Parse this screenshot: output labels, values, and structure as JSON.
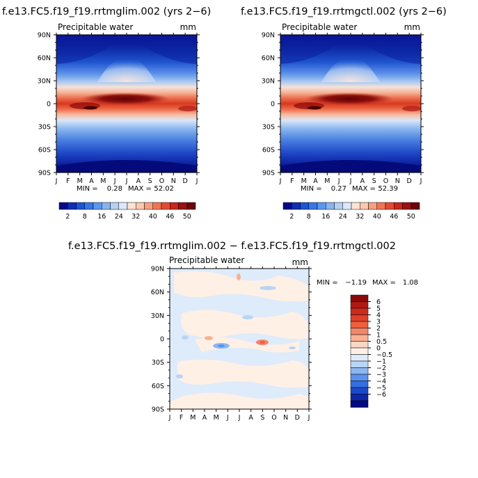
{
  "chart_data": [
    {
      "type": "heatmap",
      "title": "f.e13.FC5.f19_f19.rrtmglim.002 (yrs 2−6)",
      "subtitle": "Precipitable water",
      "units": "mm",
      "x_labels": [
        "J",
        "F",
        "M",
        "A",
        "M",
        "J",
        "J",
        "A",
        "S",
        "O",
        "N",
        "D",
        "J"
      ],
      "y_labels": [
        "90N",
        "60N",
        "30N",
        "0",
        "30S",
        "60S",
        "90S"
      ],
      "stats": {
        "min_label": "MIN =",
        "min": "0.28",
        "max_label": "MAX =",
        "max": "52.02"
      }
    },
    {
      "type": "heatmap",
      "title": "f.e13.FC5.f19_f19.rrtmgctl.002 (yrs 2−6)",
      "subtitle": "Precipitable water",
      "units": "mm",
      "x_labels": [
        "J",
        "F",
        "M",
        "A",
        "M",
        "J",
        "J",
        "A",
        "S",
        "O",
        "N",
        "D",
        "J"
      ],
      "y_labels": [
        "90N",
        "60N",
        "30N",
        "0",
        "30S",
        "60S",
        "90S"
      ],
      "stats": {
        "min_label": "MIN =",
        "min": "0.27",
        "max_label": "MAX =",
        "max": "52.39"
      }
    },
    {
      "type": "heatmap",
      "title": "f.e13.FC5.f19_f19.rrtmglim.002 − f.e13.FC5.f19_f19.rrtmgctl.002",
      "subtitle": "Precipitable water",
      "units": "mm",
      "x_labels": [
        "J",
        "F",
        "M",
        "A",
        "M",
        "J",
        "J",
        "A",
        "S",
        "O",
        "N",
        "D",
        "J"
      ],
      "y_labels": [
        "90N",
        "60N",
        "30N",
        "0",
        "30S",
        "60S",
        "90S"
      ],
      "stats": {
        "min_label": "MIN =",
        "min": "−1.19",
        "max_label": "MAX =",
        "max": "1.08"
      }
    }
  ],
  "legend_main": {
    "labels": [
      "2",
      "8",
      "16",
      "24",
      "32",
      "40",
      "46",
      "50"
    ],
    "colors": [
      "#08088c",
      "#0b2fb5",
      "#1a55d8",
      "#3577e6",
      "#5a98ee",
      "#86b5f2",
      "#b4d0f5",
      "#dde9f7",
      "#fbe3d6",
      "#fbc8ac",
      "#f7a07c",
      "#f07553",
      "#e44a32",
      "#c8261b",
      "#9e0f10",
      "#6b0505"
    ]
  },
  "legend_diff": {
    "labels": [
      "6",
      "5",
      "4",
      "3",
      "2",
      "1",
      "0.5",
      "0",
      "−0.5",
      "−1",
      "−2",
      "−3",
      "−4",
      "−5",
      "−6"
    ],
    "colors": [
      "#8b0a0a",
      "#b01a14",
      "#cc2a1c",
      "#e0402a",
      "#ee5e3f",
      "#f5866a",
      "#f9b193",
      "#fbd8c4",
      "#fff0e6",
      "#deebfa",
      "#b9d4f6",
      "#8bb6f2",
      "#5a92ec",
      "#346fe2",
      "#1c48cc",
      "#0c28a8",
      "#060a80"
    ]
  }
}
